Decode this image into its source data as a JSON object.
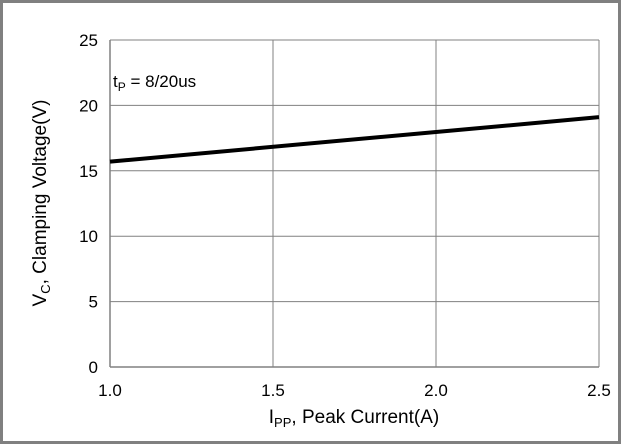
{
  "chart_data": {
    "type": "line",
    "xlabel": {
      "main": "I",
      "sub": "PP",
      "rest": ", Peak Current(A)"
    },
    "ylabel": {
      "main": "V",
      "sub": "C",
      "rest": ", Clamping Voltage(V)"
    },
    "annotation": {
      "main": "t",
      "sub": "P",
      "rest": " = 8/20us"
    },
    "xlim": [
      1.0,
      2.5
    ],
    "ylim": [
      0,
      25
    ],
    "xticks": [
      "1.0",
      "1.5",
      "2.0",
      "2.5"
    ],
    "yticks": [
      "0",
      "5",
      "10",
      "15",
      "20",
      "25"
    ],
    "grid": true,
    "series": [
      {
        "x": [
          1.0,
          2.5
        ],
        "y": [
          15.7,
          19.1
        ]
      }
    ],
    "colors": {
      "line": "#000000",
      "grid": "#808080",
      "axis": "#808080",
      "frame": "#808080"
    }
  }
}
